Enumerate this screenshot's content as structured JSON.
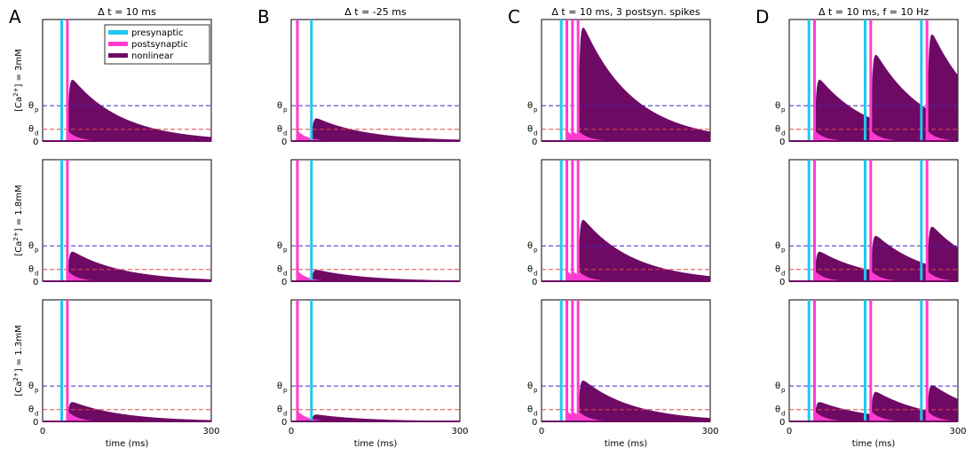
{
  "chart_data": {
    "type": "area",
    "colors": {
      "presynaptic": "#1ec8f0",
      "postsynaptic": "#ff3ccf",
      "nonlinear": "#6e0a64",
      "theta_p_line": "#3c28c8",
      "theta_d_line": "#e64646"
    },
    "legend": {
      "placement": "top-right of panel A, row 1",
      "entries": [
        "presynaptic",
        "postsynaptic",
        "nonlinear"
      ]
    },
    "x_axis": {
      "label": "time (ms)",
      "range": [
        0,
        300
      ],
      "ticks": [
        "0",
        "300"
      ]
    },
    "y_axis": {
      "threshold_labels": {
        "theta_p": "θ",
        "p_sub": "p",
        "theta_d": "θ",
        "d_sub": "d",
        "zero": "0"
      }
    },
    "thresholds": {
      "theta_d": 0.1,
      "theta_p": 0.3
    },
    "columns": [
      {
        "letter": "A",
        "title": "Δ t = 10 ms",
        "pre_spikes_ms": [
          34
        ],
        "post_spikes_ms": [
          44
        ]
      },
      {
        "letter": "B",
        "title": "Δ t = -25 ms",
        "pre_spikes_ms": [
          36
        ],
        "post_spikes_ms": [
          11
        ]
      },
      {
        "letter": "C",
        "title": "Δ t = 10 ms, 3 postsyn. spikes",
        "pre_spikes_ms": [
          35
        ],
        "post_spikes_ms": [
          45,
          55,
          65
        ]
      },
      {
        "letter": "D",
        "title": "Δ t = 10 ms, f = 10 Hz",
        "pre_spikes_ms": [
          35,
          135,
          235
        ],
        "post_spikes_ms": [
          45,
          145,
          245
        ]
      }
    ],
    "rows": [
      {
        "label_pre": "[Ca",
        "label_sup": "2+",
        "label_post": "] = 3mM",
        "nl_peak": {
          "A": 0.54,
          "B": 0.2,
          "C": 1.0,
          "D": [
            0.54,
            0.76,
            0.94
          ]
        },
        "decay_end": {
          "A": 0.1,
          "B": 0.03,
          "C": 0.2,
          "D": 0.6
        }
      },
      {
        "label_pre": "[Ca",
        "label_sup": "2+",
        "label_post": "] = 1.8mM",
        "nl_peak": {
          "A": 0.26,
          "B": 0.1,
          "C": 0.54,
          "D": [
            0.26,
            0.4,
            0.48
          ]
        },
        "decay_end": {
          "A": 0.04,
          "B": 0.01,
          "C": 0.08,
          "D": 0.34
        }
      },
      {
        "label_pre": "[Ca",
        "label_sup": "2+",
        "label_post": "] = 1.3mM",
        "nl_peak": {
          "A": 0.17,
          "B": 0.06,
          "C": 0.36,
          "D": [
            0.17,
            0.26,
            0.32
          ]
        },
        "decay_end": {
          "A": 0.02,
          "B": 0.005,
          "C": 0.05,
          "D": 0.22
        }
      }
    ]
  }
}
